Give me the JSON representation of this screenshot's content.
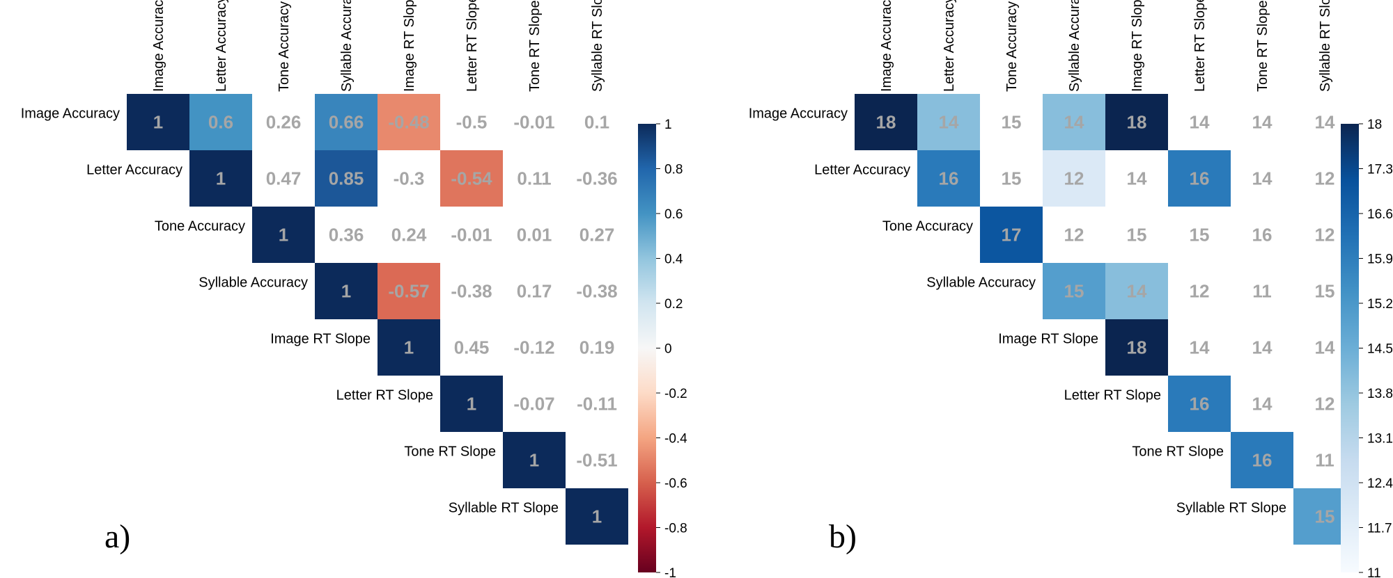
{
  "chart_data": [
    {
      "type": "heatmap",
      "panel_label": "a)",
      "shape": "upper-triangular",
      "row_labels": [
        "Image Accuracy",
        "Letter Accuracy",
        "Tone Accuracy",
        "Syllable Accuracy",
        "Image RT Slope",
        "Letter RT Slope",
        "Tone RT Slope",
        "Syllable RT Slope"
      ],
      "col_labels": [
        "Image Accuracy",
        "Letter Accuracy",
        "Tone Accuracy",
        "Syllable Accuracy",
        "Image RT Slope",
        "Letter RT Slope",
        "Tone RT Slope",
        "Syllable RT Slope"
      ],
      "cell_labels": [
        [
          "1",
          "0.6",
          "0.26",
          "0.66",
          "-0.48",
          "-0.5",
          "-0.01",
          "0.1"
        ],
        [
          "",
          "1",
          "0.47",
          "0.85",
          "-0.3",
          "-0.54",
          "0.11",
          "-0.36"
        ],
        [
          "",
          "",
          "1",
          "0.36",
          "0.24",
          "-0.01",
          "0.01",
          "0.27"
        ],
        [
          "",
          "",
          "",
          "1",
          "-0.57",
          "-0.38",
          "0.17",
          "-0.38"
        ],
        [
          "",
          "",
          "",
          "",
          "1",
          "0.45",
          "-0.12",
          "0.19"
        ],
        [
          "",
          "",
          "",
          "",
          "",
          "1",
          "-0.07",
          "-0.11"
        ],
        [
          "",
          "",
          "",
          "",
          "",
          "",
          "1",
          "-0.51"
        ],
        [
          "",
          "",
          "",
          "",
          "",
          "",
          "",
          "1"
        ]
      ],
      "colored_cells": [
        [
          1,
          0.6,
          null,
          0.66,
          -0.48,
          null,
          null,
          null
        ],
        [
          null,
          1,
          null,
          0.85,
          null,
          -0.54,
          null,
          null
        ],
        [
          null,
          null,
          1,
          null,
          null,
          null,
          null,
          null
        ],
        [
          null,
          null,
          null,
          1,
          -0.57,
          null,
          null,
          null
        ],
        [
          null,
          null,
          null,
          null,
          1,
          null,
          null,
          null
        ],
        [
          null,
          null,
          null,
          null,
          null,
          1,
          null,
          null
        ],
        [
          null,
          null,
          null,
          null,
          null,
          null,
          1,
          null
        ],
        [
          null,
          null,
          null,
          null,
          null,
          null,
          null,
          1
        ]
      ],
      "colormap": "RdBu",
      "colorbar": {
        "min": -1,
        "max": 1,
        "ticks": [
          "1",
          "0.8",
          "0.6",
          "0.4",
          "0.2",
          "0",
          "-0.2",
          "-0.4",
          "-0.6",
          "-0.8",
          "-1"
        ]
      }
    },
    {
      "type": "heatmap",
      "panel_label": "b)",
      "shape": "upper-triangular",
      "row_labels": [
        "Image Accuracy",
        "Letter Accuracy",
        "Tone Accuracy",
        "Syllable Accuracy",
        "Image RT Slope",
        "Letter RT Slope",
        "Tone RT Slope",
        "Syllable RT Slope"
      ],
      "col_labels": [
        "Image Accuracy",
        "Letter Accuracy",
        "Tone Accuracy",
        "Syllable Accuracy",
        "Image RT Slope",
        "Letter RT Slope",
        "Tone RT Slope",
        "Syllable RT Slope"
      ],
      "cell_labels": [
        [
          "18",
          "14",
          "15",
          "14",
          "18",
          "14",
          "14",
          "14"
        ],
        [
          "",
          "16",
          "15",
          "12",
          "14",
          "16",
          "14",
          "12"
        ],
        [
          "",
          "",
          "17",
          "12",
          "15",
          "15",
          "16",
          "12"
        ],
        [
          "",
          "",
          "",
          "15",
          "14",
          "12",
          "11",
          "15"
        ],
        [
          "",
          "",
          "",
          "",
          "18",
          "14",
          "14",
          "14"
        ],
        [
          "",
          "",
          "",
          "",
          "",
          "16",
          "14",
          "12"
        ],
        [
          "",
          "",
          "",
          "",
          "",
          "",
          "16",
          "11"
        ],
        [
          "",
          "",
          "",
          "",
          "",
          "",
          "",
          "15"
        ]
      ],
      "colored_cells": [
        [
          18,
          14,
          null,
          14,
          18,
          null,
          null,
          null
        ],
        [
          null,
          16,
          null,
          12,
          null,
          16,
          null,
          null
        ],
        [
          null,
          null,
          17,
          null,
          null,
          null,
          null,
          null
        ],
        [
          null,
          null,
          null,
          15,
          14,
          null,
          null,
          null
        ],
        [
          null,
          null,
          null,
          null,
          18,
          null,
          null,
          null
        ],
        [
          null,
          null,
          null,
          null,
          null,
          16,
          null,
          null
        ],
        [
          null,
          null,
          null,
          null,
          null,
          null,
          16,
          null
        ],
        [
          null,
          null,
          null,
          null,
          null,
          null,
          null,
          15
        ]
      ],
      "colormap": "Blues",
      "colorbar": {
        "min": 11,
        "max": 18,
        "ticks": [
          "18",
          "17.3",
          "16.6",
          "15.9",
          "15.2",
          "14.5",
          "13.8",
          "13.1",
          "12.4",
          "11.7",
          "11"
        ]
      }
    }
  ]
}
